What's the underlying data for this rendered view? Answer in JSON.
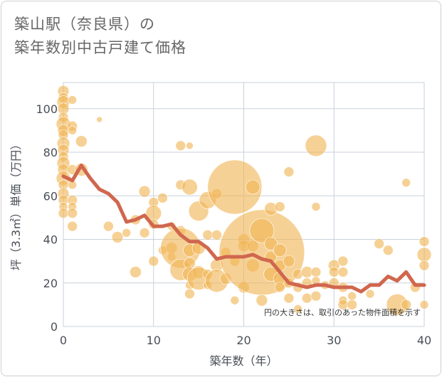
{
  "title": {
    "line1": "築山駅（奈良県）の",
    "line2": "築年数別中古戸建て価格"
  },
  "chart_data": {
    "type": "scatter",
    "xlabel": "築年数（年）",
    "ylabel": "坪（3.3㎡）単価（万円）",
    "xlim": [
      0,
      40
    ],
    "ylim": [
      0,
      112
    ],
    "xticks": [
      0,
      10,
      20,
      30,
      40
    ],
    "yticks": [
      0,
      20,
      40,
      60,
      80,
      100
    ],
    "grid": true,
    "note": "円の大きさは、取引のあった物件面積を示す",
    "colors": {
      "bubble": "#f0b456",
      "line": "#d0674e",
      "grid": "#c9d1dc"
    },
    "bubbles": [
      {
        "x": 0,
        "y": 108,
        "s": 8
      },
      {
        "x": 0,
        "y": 105,
        "s": 7
      },
      {
        "x": 0,
        "y": 103,
        "s": 9
      },
      {
        "x": 0,
        "y": 100,
        "s": 8
      },
      {
        "x": 0,
        "y": 96,
        "s": 7
      },
      {
        "x": 0,
        "y": 93,
        "s": 10
      },
      {
        "x": 0,
        "y": 90,
        "s": 8
      },
      {
        "x": 0,
        "y": 88,
        "s": 7
      },
      {
        "x": 0,
        "y": 84,
        "s": 9
      },
      {
        "x": 0,
        "y": 81,
        "s": 8
      },
      {
        "x": 0,
        "y": 78,
        "s": 7
      },
      {
        "x": 0,
        "y": 75,
        "s": 9
      },
      {
        "x": 0,
        "y": 72,
        "s": 8
      },
      {
        "x": 0,
        "y": 68,
        "s": 10
      },
      {
        "x": 0,
        "y": 65,
        "s": 7
      },
      {
        "x": 0,
        "y": 61,
        "s": 8
      },
      {
        "x": 0,
        "y": 58,
        "s": 7
      },
      {
        "x": 0,
        "y": 55,
        "s": 6
      },
      {
        "x": 0,
        "y": 52,
        "s": 7
      },
      {
        "x": 1,
        "y": 104,
        "s": 6
      },
      {
        "x": 1,
        "y": 92,
        "s": 7
      },
      {
        "x": 1,
        "y": 90,
        "s": 6
      },
      {
        "x": 1,
        "y": 72,
        "s": 7
      },
      {
        "x": 1,
        "y": 65,
        "s": 6
      },
      {
        "x": 1,
        "y": 58,
        "s": 7
      },
      {
        "x": 1,
        "y": 55,
        "s": 6
      },
      {
        "x": 1,
        "y": 52,
        "s": 7
      },
      {
        "x": 1,
        "y": 46,
        "s": 7
      },
      {
        "x": 2,
        "y": 85,
        "s": 8
      },
      {
        "x": 2,
        "y": 72,
        "s": 9
      },
      {
        "x": 4,
        "y": 95,
        "s": 4
      },
      {
        "x": 5,
        "y": 46,
        "s": 7
      },
      {
        "x": 6,
        "y": 41,
        "s": 8
      },
      {
        "x": 7,
        "y": 43,
        "s": 6
      },
      {
        "x": 8,
        "y": 49,
        "s": 7
      },
      {
        "x": 8,
        "y": 25,
        "s": 8
      },
      {
        "x": 9,
        "y": 62,
        "s": 8
      },
      {
        "x": 9,
        "y": 43,
        "s": 7
      },
      {
        "x": 10,
        "y": 57,
        "s": 7
      },
      {
        "x": 10,
        "y": 52,
        "s": 11
      },
      {
        "x": 10,
        "y": 47,
        "s": 7
      },
      {
        "x": 10,
        "y": 30,
        "s": 7
      },
      {
        "x": 11,
        "y": 59,
        "s": 7
      },
      {
        "x": 11,
        "y": 35,
        "s": 6
      },
      {
        "x": 12,
        "y": 46,
        "s": 6
      },
      {
        "x": 12,
        "y": 36,
        "s": 8
      },
      {
        "x": 12,
        "y": 32,
        "s": 6
      },
      {
        "x": 13,
        "y": 83,
        "s": 7
      },
      {
        "x": 13,
        "y": 65,
        "s": 7
      },
      {
        "x": 13,
        "y": 44,
        "s": 7
      },
      {
        "x": 13,
        "y": 36,
        "s": 28
      },
      {
        "x": 13,
        "y": 26,
        "s": 15
      },
      {
        "x": 14,
        "y": 83,
        "s": 5
      },
      {
        "x": 14,
        "y": 64,
        "s": 11
      },
      {
        "x": 14,
        "y": 35,
        "s": 9
      },
      {
        "x": 14,
        "y": 29,
        "s": 8
      },
      {
        "x": 14,
        "y": 24,
        "s": 10
      },
      {
        "x": 14,
        "y": 19,
        "s": 6
      },
      {
        "x": 14,
        "y": 15,
        "s": 7
      },
      {
        "x": 15,
        "y": 53,
        "s": 14
      },
      {
        "x": 15,
        "y": 36,
        "s": 9
      },
      {
        "x": 15,
        "y": 25,
        "s": 9
      },
      {
        "x": 15,
        "y": 22,
        "s": 16
      },
      {
        "x": 16,
        "y": 58,
        "s": 12
      },
      {
        "x": 16,
        "y": 42,
        "s": 7
      },
      {
        "x": 16,
        "y": 24,
        "s": 7
      },
      {
        "x": 16,
        "y": 19,
        "s": 6
      },
      {
        "x": 17,
        "y": 61,
        "s": 7
      },
      {
        "x": 17,
        "y": 42,
        "s": 7
      },
      {
        "x": 17,
        "y": 28,
        "s": 9
      },
      {
        "x": 17,
        "y": 21,
        "s": 16
      },
      {
        "x": 18,
        "y": 34,
        "s": 7
      },
      {
        "x": 18,
        "y": 22,
        "s": 8
      },
      {
        "x": 19,
        "y": 64,
        "s": 38
      },
      {
        "x": 19,
        "y": 30,
        "s": 7
      },
      {
        "x": 19,
        "y": 12,
        "s": 6
      },
      {
        "x": 20,
        "y": 40,
        "s": 8
      },
      {
        "x": 20,
        "y": 37,
        "s": 8
      },
      {
        "x": 20,
        "y": 18,
        "s": 8
      },
      {
        "x": 21,
        "y": 64,
        "s": 10
      },
      {
        "x": 21,
        "y": 37,
        "s": 8
      },
      {
        "x": 21,
        "y": 28,
        "s": 9
      },
      {
        "x": 22,
        "y": 34,
        "s": 60
      },
      {
        "x": 22,
        "y": 44,
        "s": 17
      },
      {
        "x": 22,
        "y": 12,
        "s": 8
      },
      {
        "x": 23,
        "y": 54,
        "s": 9
      },
      {
        "x": 23,
        "y": 38,
        "s": 9
      },
      {
        "x": 23,
        "y": 32,
        "s": 8
      },
      {
        "x": 23,
        "y": 24,
        "s": 10
      },
      {
        "x": 24,
        "y": 55,
        "s": 7
      },
      {
        "x": 24,
        "y": 35,
        "s": 9
      },
      {
        "x": 24,
        "y": 28,
        "s": 8
      },
      {
        "x": 24,
        "y": 22,
        "s": 9
      },
      {
        "x": 24,
        "y": 18,
        "s": 7
      },
      {
        "x": 25,
        "y": 71,
        "s": 7
      },
      {
        "x": 25,
        "y": 30,
        "s": 8
      },
      {
        "x": 25,
        "y": 20,
        "s": 7
      },
      {
        "x": 25,
        "y": 13,
        "s": 7
      },
      {
        "x": 26,
        "y": 24,
        "s": 7
      },
      {
        "x": 26,
        "y": 18,
        "s": 7
      },
      {
        "x": 26,
        "y": 8,
        "s": 6
      },
      {
        "x": 27,
        "y": 25,
        "s": 8
      },
      {
        "x": 27,
        "y": 20,
        "s": 7
      },
      {
        "x": 27,
        "y": 13,
        "s": 7
      },
      {
        "x": 28,
        "y": 83,
        "s": 15
      },
      {
        "x": 28,
        "y": 55,
        "s": 6
      },
      {
        "x": 28,
        "y": 25,
        "s": 7
      },
      {
        "x": 28,
        "y": 21,
        "s": 6
      },
      {
        "x": 28,
        "y": 14,
        "s": 7
      },
      {
        "x": 29,
        "y": 19,
        "s": 6
      },
      {
        "x": 30,
        "y": 28,
        "s": 8
      },
      {
        "x": 30,
        "y": 25,
        "s": 7
      },
      {
        "x": 30,
        "y": 20,
        "s": 7
      },
      {
        "x": 31,
        "y": 30,
        "s": 7
      },
      {
        "x": 31,
        "y": 25,
        "s": 7
      },
      {
        "x": 31,
        "y": 18,
        "s": 7
      },
      {
        "x": 31,
        "y": 12,
        "s": 6
      },
      {
        "x": 31,
        "y": 10,
        "s": 7
      },
      {
        "x": 32,
        "y": 14,
        "s": 6
      },
      {
        "x": 32,
        "y": 10,
        "s": 7
      },
      {
        "x": 34,
        "y": 15,
        "s": 6
      },
      {
        "x": 35,
        "y": 38,
        "s": 7
      },
      {
        "x": 36,
        "y": 35,
        "s": 7
      },
      {
        "x": 37,
        "y": 10,
        "s": 15
      },
      {
        "x": 38,
        "y": 66,
        "s": 6
      },
      {
        "x": 38,
        "y": 10,
        "s": 7
      },
      {
        "x": 39,
        "y": 18,
        "s": 7
      },
      {
        "x": 40,
        "y": 39,
        "s": 7
      },
      {
        "x": 40,
        "y": 33,
        "s": 10
      },
      {
        "x": 40,
        "y": 28,
        "s": 7
      },
      {
        "x": 40,
        "y": 10,
        "s": 6
      }
    ],
    "trend": {
      "x": [
        0,
        1,
        2,
        3,
        4,
        5,
        6,
        7,
        8,
        9,
        10,
        11,
        12,
        13,
        14,
        15,
        16,
        17,
        18,
        19,
        20,
        21,
        22,
        23,
        24,
        25,
        26,
        27,
        28,
        29,
        30,
        31,
        32,
        33,
        34,
        35,
        36,
        37,
        38,
        39,
        40
      ],
      "y": [
        69,
        67,
        74,
        68,
        63,
        61,
        57,
        48,
        49,
        51,
        46,
        46,
        47,
        42,
        39,
        39,
        36,
        31,
        32,
        32,
        32,
        33,
        31,
        30,
        25,
        20,
        19,
        18,
        19,
        19,
        18,
        18,
        18,
        16,
        19,
        19,
        23,
        21,
        25,
        19,
        19
      ]
    }
  }
}
